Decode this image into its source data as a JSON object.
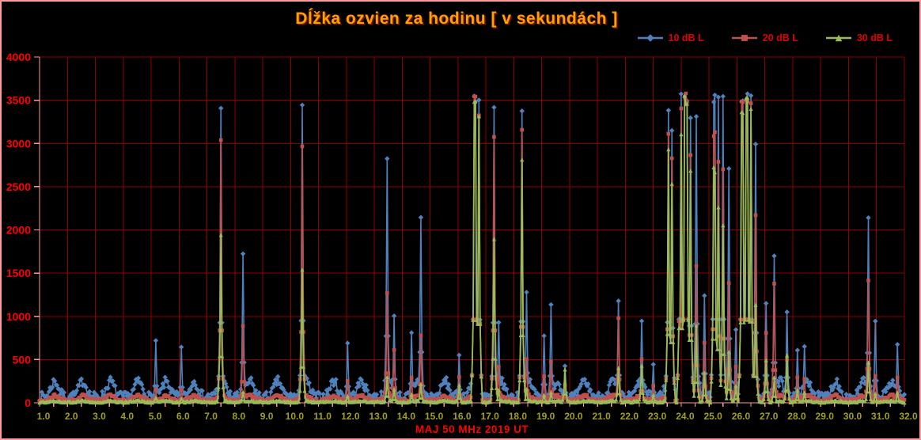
{
  "colors": {
    "background": "#000000",
    "outer_border": "#ff9c9c",
    "gridline": "#8e0000",
    "axis": "#ff9999",
    "y_tick_label": "#ff0000",
    "x_tick_label": "#a0a020",
    "title": "#ffa000",
    "legend_label": "#e00000",
    "axis_title": "#ff0000"
  },
  "chart_data": {
    "type": "line",
    "title": "Dĺžka ozvien za hodinu [ v sekundách ]",
    "xlabel": "MAJ 50 MHz  2019 UT",
    "ylabel": "",
    "xlim": [
      1.0,
      32.0
    ],
    "ylim": [
      0,
      4000
    ],
    "value_cap": 3580,
    "samples_per_day": 24,
    "grid": true,
    "grid_x_step": 1.0,
    "grid_y_step": 500,
    "x_minor_tick_step": 0.5,
    "legend_position": "top-right",
    "y_tick_labels": [
      "0",
      "500",
      "1000",
      "1500",
      "2000",
      "2500",
      "3000",
      "3500",
      "4000"
    ],
    "x_tick_labels": [
      "1.0",
      "2.0",
      "3.0",
      "4.0",
      "5.0",
      "6.0",
      "7.0",
      "8.0",
      "9.0",
      "10.0",
      "11.0",
      "12.0",
      "13.0",
      "14.0",
      "15.0",
      "16.0",
      "17.0",
      "18.0",
      "19.0",
      "20.0",
      "21.0",
      "22.0",
      "23.0",
      "24.0",
      "25.0",
      "26.0",
      "27.0",
      "28.0",
      "29.0",
      "30.0",
      "31.0",
      "32.0"
    ],
    "noise_seed": 7,
    "series": [
      {
        "id": "10db",
        "name": "10 dB L",
        "color": "#4f81bd",
        "marker": "diamond",
        "marker_size": 3.2,
        "line_width": 1.6,
        "baseline": {
          "level": 70,
          "diurnal": 180,
          "sigma_h": 4.5,
          "noise": 55,
          "min": 25
        }
      },
      {
        "id": "20db",
        "name": "20 dB L",
        "color": "#c0504d",
        "marker": "square",
        "marker_size": 2.3,
        "line_width": 1.6,
        "baseline": {
          "level": 28,
          "diurnal": 55,
          "sigma_h": 5,
          "noise": 18,
          "min": 8
        }
      },
      {
        "id": "30db",
        "name": "30 dB L",
        "color": "#9bbb59",
        "marker": "triangle",
        "marker_size": 2.6,
        "line_width": 1.8,
        "baseline": {
          "level": 10,
          "diurnal": 14,
          "sigma_h": 5,
          "noise": 9,
          "min": 2
        }
      }
    ],
    "events_format": "[day_of_may, width_hours, seconds_10dB, seconds_20dB, seconds_30dB]",
    "events": [
      [
        5.15,
        1,
        720,
        160,
        60
      ],
      [
        6.1,
        1,
        660,
        150,
        50
      ],
      [
        7.5,
        1,
        3430,
        3100,
        2000
      ],
      [
        8.3,
        1,
        1730,
        900,
        130
      ],
      [
        10.4,
        1,
        3520,
        3030,
        1550
      ],
      [
        12.05,
        1,
        700,
        260,
        80
      ],
      [
        13.45,
        1,
        2860,
        1270,
        300
      ],
      [
        13.7,
        1,
        1010,
        620,
        160
      ],
      [
        14.35,
        1,
        820,
        300,
        100
      ],
      [
        14.65,
        1,
        2170,
        800,
        220
      ],
      [
        16.05,
        1,
        560,
        300,
        210
      ],
      [
        16.6,
        2,
        3580,
        3570,
        3550
      ],
      [
        16.75,
        1,
        3560,
        3400,
        3380
      ],
      [
        17.3,
        1,
        3430,
        3100,
        1900
      ],
      [
        17.45,
        1,
        950,
        420,
        150
      ],
      [
        18.3,
        1,
        3480,
        3250,
        2900
      ],
      [
        18.45,
        1,
        1280,
        520,
        160
      ],
      [
        19.1,
        1,
        780,
        310,
        90
      ],
      [
        19.35,
        1,
        1150,
        480,
        120
      ],
      [
        19.85,
        1,
        430,
        210,
        390
      ],
      [
        21.75,
        1,
        1180,
        1000,
        410
      ],
      [
        22.6,
        1,
        970,
        510,
        430
      ],
      [
        23.0,
        1,
        450,
        200,
        90
      ],
      [
        23.55,
        1,
        3450,
        3150,
        2950
      ],
      [
        23.65,
        1,
        3200,
        2850,
        2600
      ],
      [
        24.0,
        2,
        3580,
        3500,
        3200
      ],
      [
        24.15,
        3,
        3580,
        3580,
        3560
      ],
      [
        24.35,
        1,
        3300,
        2900,
        2700
      ],
      [
        24.55,
        1,
        3380,
        1600,
        900
      ],
      [
        24.85,
        1,
        1250,
        700,
        350
      ],
      [
        25.2,
        2,
        3580,
        3150,
        2750
      ],
      [
        25.35,
        1,
        3570,
        2850,
        2300
      ],
      [
        25.5,
        1,
        3580,
        2750,
        2100
      ],
      [
        25.7,
        1,
        2750,
        1400,
        600
      ],
      [
        25.95,
        1,
        850,
        420,
        200
      ],
      [
        26.2,
        2,
        3580,
        3560,
        3450
      ],
      [
        26.35,
        2,
        3580,
        3580,
        3560
      ],
      [
        26.5,
        1,
        3570,
        3500,
        3480
      ],
      [
        26.65,
        1,
        3000,
        2200,
        1150
      ],
      [
        27.05,
        1,
        1170,
        820,
        500
      ],
      [
        27.35,
        1,
        1720,
        1400,
        300
      ],
      [
        27.8,
        1,
        1080,
        500,
        550
      ],
      [
        28.15,
        1,
        620,
        300,
        150
      ],
      [
        28.4,
        1,
        660,
        280,
        120
      ],
      [
        30.7,
        1,
        2140,
        1450,
        480
      ],
      [
        30.95,
        1,
        950,
        320,
        110
      ],
      [
        31.75,
        1,
        680,
        300,
        120
      ]
    ]
  }
}
